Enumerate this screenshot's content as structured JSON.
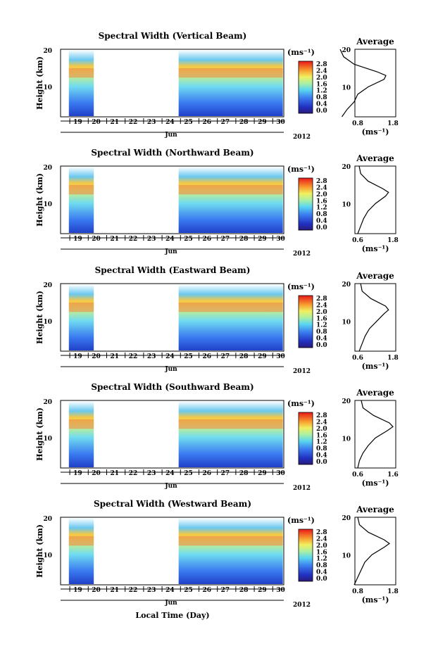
{
  "figure": {
    "xlabel": "Local Time (Day)",
    "month_label": "Jun",
    "year_label": "2012",
    "day_ticks": [
      "19",
      "20",
      "21",
      "22",
      "23",
      "24",
      "25",
      "26",
      "27",
      "28",
      "29",
      "30"
    ],
    "height_ticks": [
      "20",
      "10"
    ],
    "ylabel": "Height (km)",
    "colorbar_unit": "(ms⁻¹)",
    "avg_title": "Average",
    "avg_xlabel": "(ms⁻¹)",
    "avg_y_ticks": [
      "20",
      "10"
    ]
  },
  "chart_data": [
    {
      "type": "heatmap",
      "title": "Spectral Width (Vertical Beam)",
      "colorbar_ticks": [
        "2.8",
        "2.4",
        "2.0",
        "1.6",
        "1.2",
        "0.8",
        "0.4",
        "0.0"
      ],
      "avg_x_ticks": [
        "0.8",
        "1.8"
      ],
      "ylim": [
        2,
        20
      ],
      "xlim_days": [
        18.5,
        30.6
      ],
      "data_gap_days": [
        20.3,
        24.9
      ],
      "avg_profile": {
        "height": [
          2,
          4,
          6,
          8,
          10,
          12,
          13,
          14,
          16,
          18,
          20
        ],
        "value": [
          0.35,
          0.5,
          0.7,
          0.8,
          1.1,
          1.55,
          1.6,
          1.35,
          0.7,
          0.4,
          0.3
        ]
      }
    },
    {
      "type": "heatmap",
      "title": "Spectral Width (Northward Beam)",
      "colorbar_ticks": [
        "2.8",
        "2.4",
        "2.0",
        "1.6",
        "1.2",
        "0.8",
        "0.4",
        "0.0"
      ],
      "avg_x_ticks": [
        "0.6",
        "1.8"
      ],
      "ylim": [
        2,
        20
      ],
      "xlim_days": [
        18.5,
        30.6
      ],
      "data_gap_days": [
        20.3,
        24.9
      ],
      "avg_profile": {
        "height": [
          2,
          4,
          6,
          8,
          10,
          12,
          13,
          14,
          16,
          18,
          20
        ],
        "value": [
          0.6,
          0.7,
          0.8,
          0.95,
          1.2,
          1.55,
          1.65,
          1.45,
          0.95,
          0.7,
          0.65
        ]
      }
    },
    {
      "type": "heatmap",
      "title": "Spectral Width (Eastward Beam)",
      "colorbar_ticks": [
        "2.8",
        "2.4",
        "2.0",
        "1.6",
        "1.2",
        "0.8",
        "0.4",
        "0.0"
      ],
      "avg_x_ticks": [
        "0.6",
        "1.8"
      ],
      "ylim": [
        2,
        20
      ],
      "xlim_days": [
        18.5,
        30.6
      ],
      "data_gap_days": [
        20.3,
        24.9
      ],
      "avg_profile": {
        "height": [
          2,
          4,
          6,
          8,
          10,
          12,
          13,
          14,
          16,
          18,
          20
        ],
        "value": [
          0.65,
          0.75,
          0.85,
          1.0,
          1.25,
          1.5,
          1.65,
          1.55,
          1.05,
          0.75,
          0.7
        ]
      }
    },
    {
      "type": "heatmap",
      "title": "Spectral Width (Southward Beam)",
      "colorbar_ticks": [
        "2.8",
        "2.4",
        "2.0",
        "1.6",
        "1.2",
        "0.8",
        "0.4",
        "0.0"
      ],
      "avg_x_ticks": [
        "0.6",
        "1.6"
      ],
      "ylim": [
        2,
        20
      ],
      "xlim_days": [
        18.5,
        30.6
      ],
      "data_gap_days": [
        20.3,
        24.9
      ],
      "avg_profile": {
        "height": [
          2,
          4,
          6,
          8,
          10,
          12,
          13,
          14,
          16,
          18,
          20
        ],
        "value": [
          0.6,
          0.65,
          0.75,
          0.9,
          1.1,
          1.45,
          1.6,
          1.5,
          1.05,
          0.75,
          0.7
        ]
      }
    },
    {
      "type": "heatmap",
      "title": "Spectral Width (Westward Beam)",
      "colorbar_ticks": [
        "2.8",
        "2.4",
        "2.0",
        "1.6",
        "1.2",
        "0.8",
        "0.4",
        "0.0"
      ],
      "avg_x_ticks": [
        "0.8",
        "1.8"
      ],
      "ylim": [
        2,
        20
      ],
      "xlim_days": [
        18.5,
        30.6
      ],
      "data_gap_days": [
        20.3,
        24.9
      ],
      "avg_profile": {
        "height": [
          2,
          4,
          6,
          8,
          10,
          12,
          13,
          14,
          16,
          18,
          20
        ],
        "value": [
          0.7,
          0.8,
          0.9,
          1.0,
          1.2,
          1.55,
          1.7,
          1.55,
          1.1,
          0.85,
          0.8
        ]
      }
    }
  ]
}
